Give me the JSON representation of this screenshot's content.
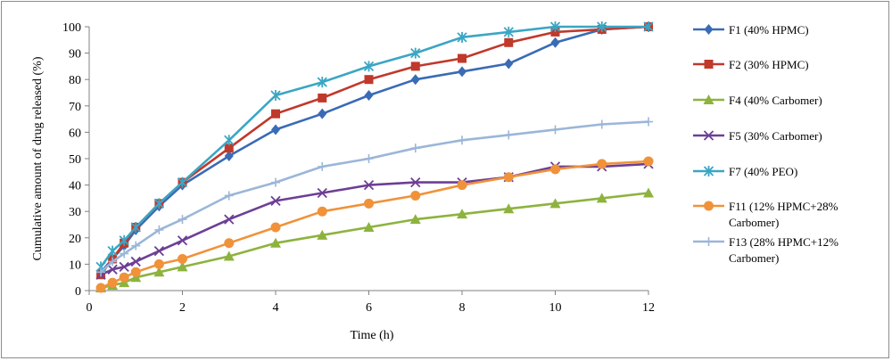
{
  "chart_data": {
    "type": "line",
    "title": "",
    "xlabel": "Time (h)",
    "ylabel": "Cumulative  amount of drug released (%)",
    "xlim": [
      0,
      12
    ],
    "ylim": [
      0,
      100
    ],
    "xticks": [
      0,
      2,
      4,
      6,
      8,
      10,
      12
    ],
    "yticks": [
      0,
      10,
      20,
      30,
      40,
      50,
      60,
      70,
      80,
      90,
      100
    ],
    "grid": false,
    "legend_position": "right",
    "series": [
      {
        "name": "F1 (40% HPMC)",
        "color": "#3a6bb5",
        "marker": "diamond",
        "x": [
          0.25,
          0.5,
          0.75,
          1,
          1.5,
          2,
          3,
          4,
          5,
          6,
          7,
          8,
          9,
          10,
          11,
          12
        ],
        "y": [
          7,
          12,
          17,
          23,
          32,
          40,
          51,
          61,
          67,
          74,
          80,
          83,
          86,
          94,
          99,
          100
        ]
      },
      {
        "name": "F2 (30% HPMC)",
        "color": "#c0392b",
        "marker": "square",
        "x": [
          0.25,
          0.5,
          0.75,
          1,
          1.5,
          2,
          3,
          4,
          5,
          6,
          7,
          8,
          9,
          10,
          11,
          12
        ],
        "y": [
          6,
          12,
          18,
          24,
          33,
          41,
          54,
          67,
          73,
          80,
          85,
          88,
          94,
          98,
          99,
          100
        ]
      },
      {
        "name": "F4 (40% Carbomer)",
        "color": "#8db33e",
        "marker": "triangle",
        "x": [
          0.25,
          0.5,
          0.75,
          1,
          1.5,
          2,
          3,
          4,
          5,
          6,
          7,
          8,
          9,
          10,
          11,
          12
        ],
        "y": [
          1,
          2,
          3,
          5,
          7,
          9,
          13,
          18,
          21,
          24,
          27,
          29,
          31,
          33,
          35,
          37
        ]
      },
      {
        "name": "F5 (30% Carbomer)",
        "color": "#6c3f95",
        "marker": "x",
        "x": [
          0.25,
          0.5,
          0.75,
          1,
          1.5,
          2,
          3,
          4,
          5,
          6,
          7,
          8,
          9,
          10,
          11,
          12
        ],
        "y": [
          6,
          8,
          9,
          11,
          15,
          19,
          27,
          34,
          37,
          40,
          41,
          41,
          43,
          47,
          47,
          48
        ]
      },
      {
        "name": "F7 (40% PEO)",
        "color": "#3aa6c4",
        "marker": "star",
        "x": [
          0.25,
          0.5,
          0.75,
          1,
          1.5,
          2,
          3,
          4,
          5,
          6,
          7,
          8,
          9,
          10,
          11,
          12
        ],
        "y": [
          9,
          15,
          19,
          24,
          33,
          41,
          57,
          74,
          79,
          85,
          90,
          96,
          98,
          100,
          100,
          100
        ]
      },
      {
        "name": "F11 (12% HPMC+28% Carbomer)",
        "color": "#f0923a",
        "marker": "circle",
        "x": [
          0.25,
          0.5,
          0.75,
          1,
          1.5,
          2,
          3,
          4,
          5,
          6,
          7,
          8,
          9,
          10,
          11,
          12
        ],
        "y": [
          1,
          3,
          5,
          7,
          10,
          12,
          18,
          24,
          30,
          33,
          36,
          40,
          43,
          46,
          48,
          49
        ]
      },
      {
        "name": "F13 (28% HPMC+12% Carbomer)",
        "color": "#9bb6d8",
        "marker": "plus",
        "x": [
          0.25,
          0.5,
          0.75,
          1,
          1.5,
          2,
          3,
          4,
          5,
          6,
          7,
          8,
          9,
          10,
          11,
          12
        ],
        "y": [
          7,
          11,
          14,
          17,
          23,
          27,
          36,
          41,
          47,
          50,
          54,
          57,
          59,
          61,
          63,
          64
        ]
      }
    ]
  }
}
